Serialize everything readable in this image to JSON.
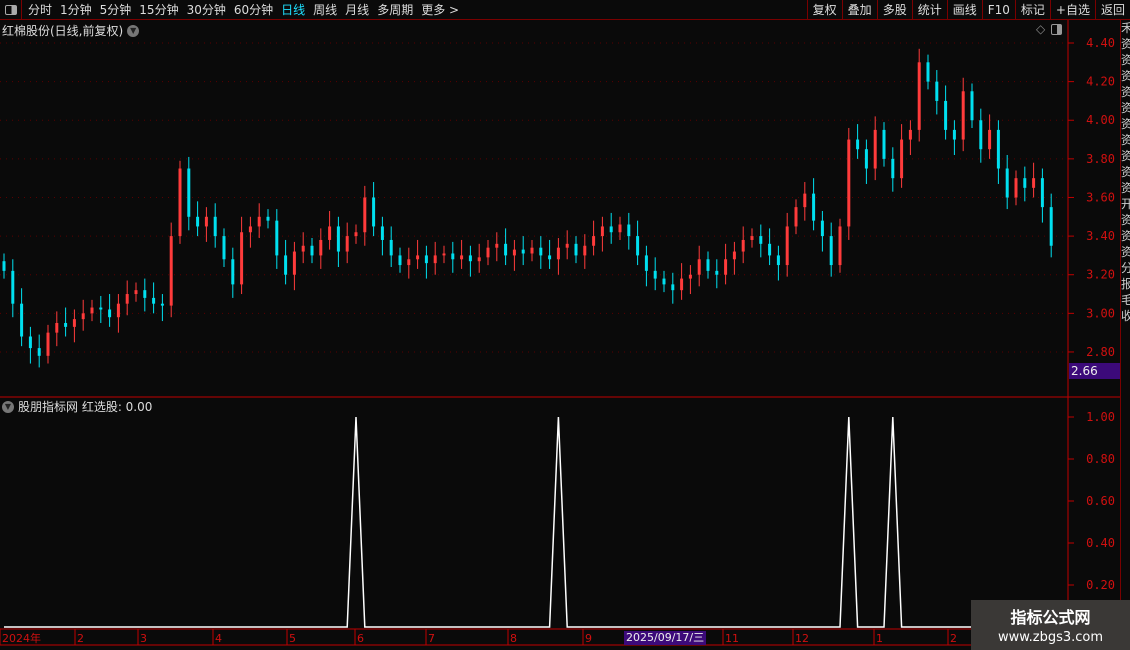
{
  "toolbar": {
    "periods": [
      "分时",
      "1分钟",
      "5分钟",
      "15分钟",
      "30分钟",
      "60分钟",
      "日线",
      "周线",
      "月线",
      "多周期",
      "更多 >"
    ],
    "active_period": "日线",
    "buttons": [
      "复权",
      "叠加",
      "多股",
      "统计",
      "画线",
      "F10",
      "标记",
      "+自选",
      "返回"
    ]
  },
  "main_title": "红棉股份(日线,前复权)",
  "indicator_title": "股朋指标网 红选股: 0.00",
  "current_price_tag": "2.66",
  "date_highlight": "2025/09/17/三",
  "right_strip_chars": [
    "禾",
    "资",
    "资",
    "资",
    "资",
    "资",
    "资",
    "资",
    "资",
    "资",
    "资",
    "开",
    "资",
    "资",
    "资",
    "分",
    "报",
    "毛",
    "收"
  ],
  "watermark": {
    "line1": "指标公式网",
    "line2": "www.zbgs3.com"
  },
  "colors": {
    "up": "#ff3b3b",
    "down": "#00e0f0",
    "axis": "#c00000",
    "grid": "#5a0000",
    "signal": "#ffffff",
    "highlight": "#3c0a7a"
  },
  "chart_data": [
    {
      "type": "candlestick",
      "y_ticks": [
        "4.40",
        "4.20",
        "4.00",
        "3.80",
        "3.60",
        "3.40",
        "3.20",
        "3.00",
        "2.80"
      ],
      "ylim": [
        2.66,
        4.46
      ],
      "grid": true,
      "x_tick_labels": [
        "2024年",
        "2",
        "3",
        "4",
        "5",
        "6",
        "7",
        "8",
        "9",
        "2025/09/17/三",
        "11",
        "12",
        "1",
        "2"
      ],
      "close": [
        3.22,
        3.05,
        2.88,
        2.82,
        2.78,
        2.9,
        2.95,
        2.93,
        2.97,
        3.0,
        3.03,
        3.02,
        2.98,
        3.05,
        3.1,
        3.12,
        3.08,
        3.05,
        3.04,
        3.4,
        3.75,
        3.5,
        3.45,
        3.5,
        3.4,
        3.28,
        3.15,
        3.42,
        3.45,
        3.5,
        3.48,
        3.3,
        3.2,
        3.32,
        3.35,
        3.3,
        3.38,
        3.45,
        3.32,
        3.4,
        3.42,
        3.6,
        3.45,
        3.38,
        3.3,
        3.25,
        3.28,
        3.3,
        3.26,
        3.3,
        3.31,
        3.28,
        3.3,
        3.27,
        3.29,
        3.34,
        3.36,
        3.3,
        3.33,
        3.31,
        3.34,
        3.3,
        3.28,
        3.34,
        3.36,
        3.3,
        3.35,
        3.4,
        3.45,
        3.42,
        3.46,
        3.4,
        3.3,
        3.22,
        3.18,
        3.15,
        3.12,
        3.18,
        3.2,
        3.28,
        3.22,
        3.2,
        3.28,
        3.32,
        3.38,
        3.4,
        3.36,
        3.3,
        3.25,
        3.45,
        3.55,
        3.62,
        3.48,
        3.4,
        3.25,
        3.45,
        3.9,
        3.85,
        3.75,
        3.95,
        3.8,
        3.7,
        3.9,
        3.95,
        4.3,
        4.2,
        4.1,
        3.95,
        3.9,
        4.15,
        4.0,
        3.85,
        3.95,
        3.75,
        3.6,
        3.7,
        3.65,
        3.7,
        3.55,
        3.35
      ]
    },
    {
      "type": "line",
      "series_name": "红选股",
      "y_ticks": [
        "1.00",
        "0.80",
        "0.60",
        "0.40",
        "0.20"
      ],
      "ylim": [
        0,
        1.05
      ],
      "values": [
        0,
        0,
        0,
        0,
        0,
        0,
        0,
        0,
        0,
        0,
        0,
        0,
        0,
        0,
        0,
        0,
        0,
        0,
        0,
        0,
        0,
        0,
        0,
        0,
        0,
        0,
        0,
        0,
        0,
        0,
        0,
        0,
        0,
        0,
        0,
        0,
        0,
        0,
        0,
        0,
        1,
        0,
        0,
        0,
        0,
        0,
        0,
        0,
        0,
        0,
        0,
        0,
        0,
        0,
        0,
        0,
        0,
        0,
        0,
        0,
        0,
        0,
        0,
        1,
        0,
        0,
        0,
        0,
        0,
        0,
        0,
        0,
        0,
        0,
        0,
        0,
        0,
        0,
        0,
        0,
        0,
        0,
        0,
        0,
        0,
        0,
        0,
        0,
        0,
        0,
        0,
        0,
        0,
        0,
        0,
        0,
        1,
        0,
        0,
        0,
        0,
        1,
        0,
        0,
        0,
        0,
        0,
        0,
        0,
        0,
        0,
        0,
        0,
        0,
        0,
        0,
        0,
        0,
        0,
        0
      ]
    }
  ]
}
